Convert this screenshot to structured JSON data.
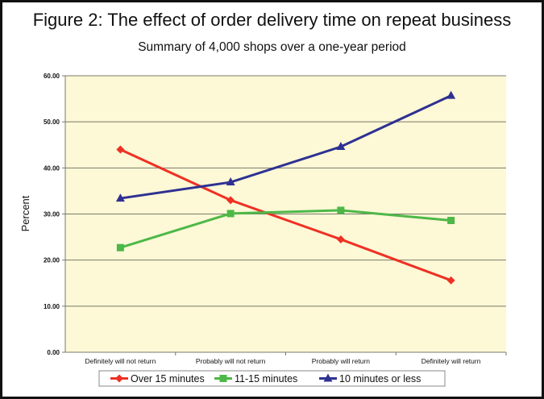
{
  "title": "Figure 2: The effect of order delivery time on repeat business",
  "subtitle": "Summary of 4,000 shops over a one-year period",
  "colors": {
    "plot_bg": "#fdf8d6",
    "grid": "#7a7a6a",
    "red": "#ee3124",
    "green": "#4db848",
    "blue": "#2e3192"
  },
  "chart_data": {
    "type": "line",
    "title": "Figure 2: The effect of order delivery time on repeat business",
    "subtitle": "Summary of 4,000 shops over a one-year period",
    "xlabel": "",
    "ylabel": "Percent",
    "ylim": [
      0,
      60
    ],
    "yticks": [
      "0.00",
      "10.00",
      "20.00",
      "30.00",
      "40.00",
      "50.00",
      "60.00"
    ],
    "grid": true,
    "legend_position": "bottom",
    "categories": [
      "Definitely will not return",
      "Probably will not return",
      "Probably will return",
      "Definitely will return"
    ],
    "series": [
      {
        "name": "Over 15 minutes",
        "color": "#ee3124",
        "marker": "diamond",
        "values": [
          44.0,
          33.0,
          24.5,
          15.6
        ]
      },
      {
        "name": "11-15 minutes",
        "color": "#4db848",
        "marker": "square",
        "values": [
          22.7,
          30.1,
          30.8,
          28.6
        ]
      },
      {
        "name": "10 minutes or less",
        "color": "#2e3192",
        "marker": "triangle",
        "values": [
          33.4,
          36.9,
          44.6,
          55.7
        ]
      }
    ]
  }
}
